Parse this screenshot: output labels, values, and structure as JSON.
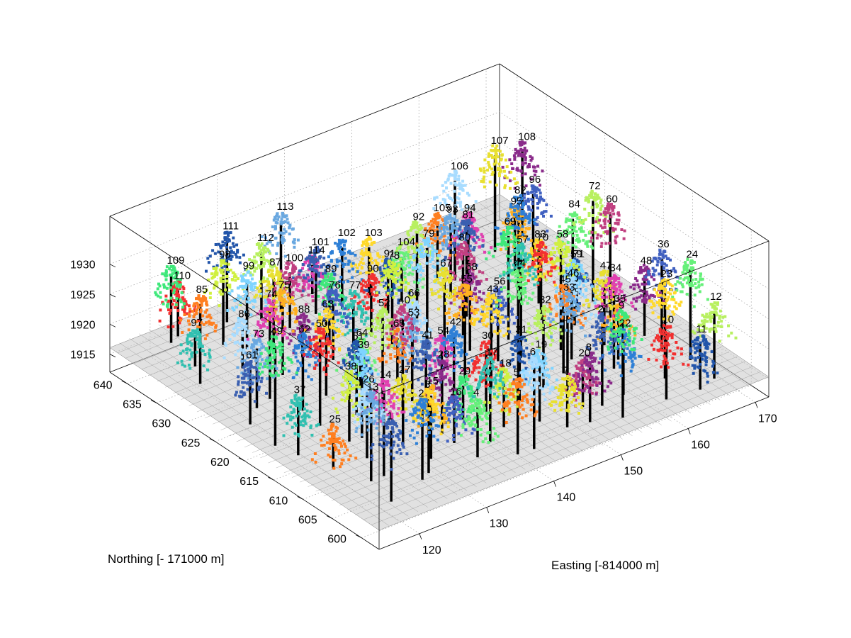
{
  "chart_data": {
    "type": "scatter",
    "subtype": "3d-point-cloud",
    "title": "",
    "xlabel": "Easting [-814000 m]",
    "ylabel": "Northing [- 171000 m]",
    "zlabel": "",
    "x_ticks": [
      120,
      130,
      140,
      150,
      160,
      170
    ],
    "y_ticks": [
      600,
      605,
      610,
      615,
      620,
      625,
      630,
      635,
      640
    ],
    "z_ticks": [
      1915,
      1920,
      1925,
      1930
    ],
    "xlim": [
      114,
      172
    ],
    "ylim": [
      597,
      643
    ],
    "zlim": [
      1912,
      1938
    ],
    "grid": true,
    "ground_color": "#a9a9a9",
    "stem_color": "#000000",
    "tree_labels": [
      "1",
      "2",
      "3",
      "4",
      "5",
      "6",
      "7",
      "8",
      "9",
      "10",
      "11",
      "12",
      "13",
      "14",
      "15",
      "16",
      "17",
      "18",
      "19",
      "20",
      "21",
      "22",
      "23",
      "24",
      "25",
      "26",
      "27",
      "28",
      "29",
      "30",
      "31",
      "32",
      "33",
      "34",
      "35",
      "36",
      "37",
      "38",
      "39",
      "40",
      "41",
      "42",
      "43",
      "44",
      "45",
      "46",
      "47",
      "48",
      "49",
      "50",
      "51",
      "52",
      "53",
      "54",
      "55",
      "56",
      "57",
      "58",
      "59",
      "60",
      "61",
      "62",
      "63",
      "64",
      "65",
      "66",
      "67",
      "68",
      "69",
      "70",
      "71",
      "72",
      "73",
      "74",
      "75",
      "76",
      "77",
      "78",
      "79",
      "80",
      "81",
      "82",
      "83",
      "84",
      "85",
      "86",
      "87",
      "88",
      "89",
      "90",
      "91",
      "92",
      "93",
      "94",
      "95",
      "96",
      "97",
      "98",
      "99",
      "100",
      "101",
      "102",
      "103",
      "104",
      "105",
      "106",
      "107",
      "108",
      "109",
      "110",
      "111",
      "112",
      "113",
      "114"
    ],
    "palette": [
      "#3a5fb0",
      "#2d7fd6",
      "#ffd92b",
      "#66f07a",
      "#ff7f20",
      "#a8dcff",
      "#e8e030",
      "#8a2b8a",
      "#3ee87a",
      "#f23030",
      "#2255aa",
      "#b8f060",
      "#6aa8e0",
      "#e040b0",
      "#ffb020",
      "#4060c0",
      "#30c0b0",
      "#d0f040",
      "#7fd4ff",
      "#c04080"
    ]
  }
}
